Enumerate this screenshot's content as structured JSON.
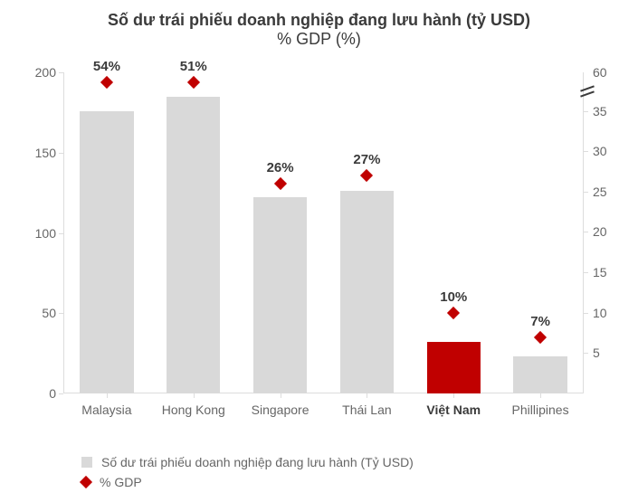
{
  "title": {
    "main": "Số dư trái phiếu doanh nghiệp đang lưu hành (tỷ USD)",
    "sub": "% GDP (%)",
    "fontsize_main": 18,
    "fontsize_sub": 18,
    "color": "#3a3a3a"
  },
  "chart": {
    "type": "bar+scatter-dual-axis",
    "categories": [
      "Malaysia",
      "Hong Kong",
      "Singapore",
      "Thái Lan",
      "Việt Nam",
      "Phillipines"
    ],
    "highlight_index": 4,
    "bars": {
      "values": [
        176,
        185,
        122,
        126,
        32,
        23
      ],
      "colors": [
        "#d9d9d9",
        "#d9d9d9",
        "#d9d9d9",
        "#d9d9d9",
        "#c00000",
        "#d9d9d9"
      ],
      "bar_width_frac": 0.62
    },
    "markers": {
      "values_pct": [
        54,
        51,
        26,
        27,
        10,
        7
      ],
      "labels": [
        "54%",
        "51%",
        "26%",
        "27%",
        "10%",
        "7%"
      ],
      "color": "#c00000",
      "size": 10
    },
    "y_left": {
      "min": 0,
      "max": 200,
      "ticks": [
        0,
        50,
        100,
        150,
        200
      ],
      "label_fontsize": 14,
      "label_color": "#666666"
    },
    "y_right": {
      "break": true,
      "linear_min": 0,
      "linear_max": 35,
      "ticks_linear": [
        5,
        10,
        15,
        20,
        25,
        30,
        35
      ],
      "tick_top": 60,
      "label_fontsize": 14,
      "label_color": "#666666"
    },
    "x_axis": {
      "label_fontsize": 14,
      "label_color": "#666666",
      "bold_indices": [
        4
      ]
    },
    "data_label": {
      "fontsize": 15,
      "color": "#3a3a3a",
      "fontweight": 700
    },
    "background_color": "#ffffff",
    "grid_color": "#dddddd",
    "axis_line_color": "#dddddd"
  },
  "legend": {
    "items": [
      {
        "marker": "square",
        "color": "#d9d9d9",
        "label": "Số dư trái phiếu doanh nghiệp đang lưu hành (Tỷ USD)"
      },
      {
        "marker": "diamond",
        "color": "#c00000",
        "label": "% GDP"
      }
    ],
    "fontsize": 14,
    "color": "#666666"
  }
}
